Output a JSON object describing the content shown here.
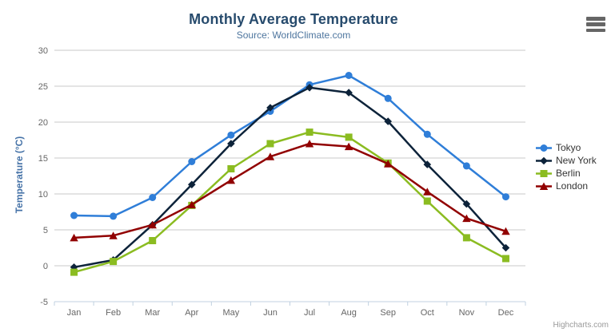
{
  "chart_data": {
    "type": "line",
    "title": "Monthly Average Temperature",
    "subtitle": "Source: WorldClimate.com",
    "categories": [
      "Jan",
      "Feb",
      "Mar",
      "Apr",
      "May",
      "Jun",
      "Jul",
      "Aug",
      "Sep",
      "Oct",
      "Nov",
      "Dec"
    ],
    "series": [
      {
        "name": "Tokyo",
        "color": "#2f7ed8",
        "marker": "circle",
        "values": [
          7.0,
          6.9,
          9.5,
          14.5,
          18.2,
          21.5,
          25.2,
          26.5,
          23.3,
          18.3,
          13.9,
          9.6
        ]
      },
      {
        "name": "New York",
        "color": "#0d233a",
        "marker": "diamond",
        "values": [
          -0.2,
          0.8,
          5.7,
          11.3,
          17.0,
          22.0,
          24.8,
          24.1,
          20.1,
          14.1,
          8.6,
          2.5
        ]
      },
      {
        "name": "Berlin",
        "color": "#8bbc21",
        "marker": "square",
        "values": [
          -0.9,
          0.6,
          3.5,
          8.4,
          13.5,
          17.0,
          18.6,
          17.9,
          14.3,
          9.0,
          3.9,
          1.0
        ]
      },
      {
        "name": "London",
        "color": "#910000",
        "marker": "triangle",
        "values": [
          3.9,
          4.2,
          5.7,
          8.5,
          11.9,
          15.2,
          17.0,
          16.6,
          14.2,
          10.3,
          6.6,
          4.8
        ]
      }
    ],
    "xlabel": "",
    "ylabel": "Temperature (°C)",
    "ylim": [
      -5,
      30
    ],
    "yticks": [
      -5,
      0,
      5,
      10,
      15,
      20,
      25,
      30
    ],
    "grid": true,
    "legend_position": "right"
  },
  "colors": {
    "title": "#274b6d",
    "subtitle": "#4d759e",
    "axis_label": "#666666",
    "y_axis_title": "#4572a7",
    "gridline": "#c9c9c9",
    "axis_line": "#c0d0e0",
    "legend_text": "#333333",
    "credits": "#999999",
    "menu_icon": "#666666"
  },
  "credits": {
    "label": "Highcharts.com"
  }
}
